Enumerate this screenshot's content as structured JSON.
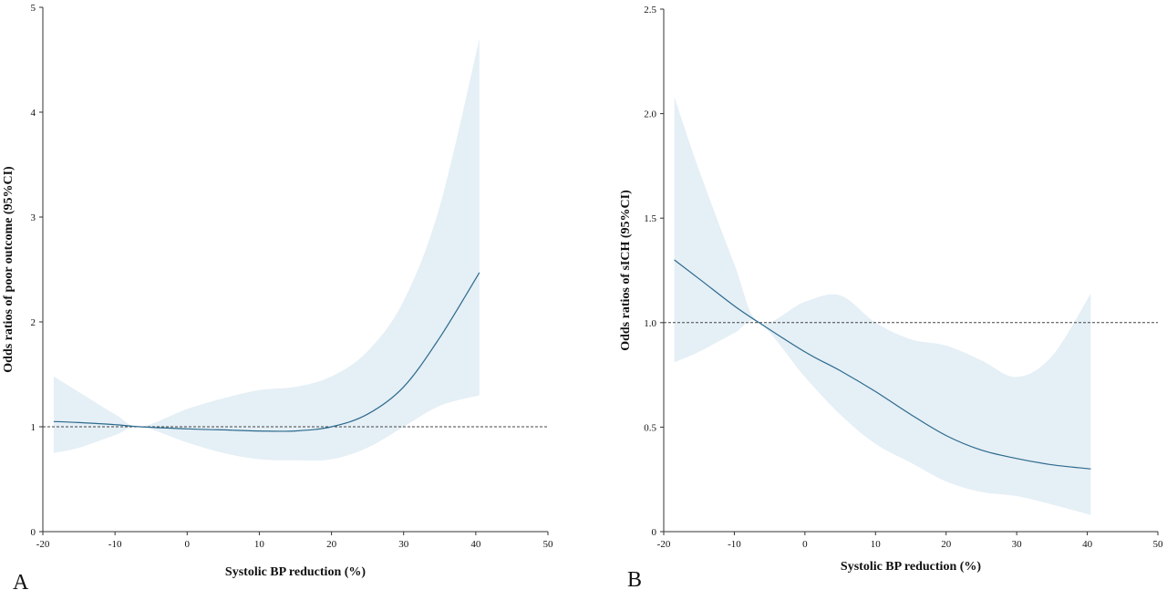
{
  "colors": {
    "band": "#dce9f3",
    "line": "#2b6a8c",
    "reference": "#444444"
  },
  "chart_data": [
    {
      "type": "line",
      "panel_label": "A",
      "xlabel": "Systolic BP reduction (%)",
      "ylabel": "Odds ratios of poor outcome (95%CI)",
      "xlim": [
        -20,
        50
      ],
      "ylim": [
        0,
        5
      ],
      "x_ticks": [
        -20,
        -10,
        0,
        10,
        20,
        30,
        40,
        50
      ],
      "x_tick_labels": [
        "-20",
        "-10",
        "0",
        "10",
        "20",
        "30",
        "40",
        "50"
      ],
      "y_ticks": [
        0,
        1,
        2,
        3,
        4,
        5
      ],
      "y_tick_labels": [
        "0",
        "1",
        "2",
        "3",
        "4",
        "5"
      ],
      "reference_line": {
        "y": 1,
        "style": "dashed",
        "x_end": 50
      },
      "x": [
        -18.5,
        -15,
        -10,
        -6.5,
        0,
        5,
        10,
        15,
        20,
        25,
        30,
        35,
        40.5
      ],
      "estimate": [
        1.05,
        1.04,
        1.02,
        1.0,
        0.98,
        0.97,
        0.96,
        0.96,
        1.0,
        1.12,
        1.38,
        1.85,
        2.47
      ],
      "ci_lower": [
        0.75,
        0.8,
        0.92,
        1.0,
        0.85,
        0.75,
        0.69,
        0.68,
        0.69,
        0.8,
        1.0,
        1.2,
        1.3
      ],
      "ci_upper": [
        1.48,
        1.33,
        1.12,
        1.0,
        1.17,
        1.27,
        1.35,
        1.38,
        1.48,
        1.72,
        2.2,
        3.1,
        4.7
      ],
      "grid": false,
      "legend": "none"
    },
    {
      "type": "line",
      "panel_label": "B",
      "xlabel": "Systolic BP reduction (%)",
      "ylabel": "Odds ratios of sICH (95%CI)",
      "xlim": [
        -20,
        50
      ],
      "ylim": [
        0,
        2.5
      ],
      "x_ticks": [
        -20,
        -10,
        0,
        10,
        20,
        30,
        40,
        50
      ],
      "x_tick_labels": [
        "-20",
        "-10",
        "0",
        "10",
        "20",
        "30",
        "40",
        "50"
      ],
      "y_ticks": [
        0,
        0.5,
        1.0,
        1.5,
        2.0,
        2.5
      ],
      "y_tick_labels": [
        "0",
        "0.5",
        "1.0",
        "1.5",
        "2.0",
        "2.5"
      ],
      "reference_line": {
        "y": 1,
        "style": "dotted",
        "x_end": 50
      },
      "x": [
        -18.5,
        -15,
        -10,
        -6.5,
        0,
        5,
        10,
        15,
        20,
        25,
        30,
        35,
        40.5
      ],
      "estimate": [
        1.3,
        1.21,
        1.08,
        1.0,
        0.86,
        0.77,
        0.67,
        0.56,
        0.46,
        0.39,
        0.35,
        0.32,
        0.3
      ],
      "ci_lower": [
        0.81,
        0.86,
        0.95,
        1.0,
        0.74,
        0.56,
        0.42,
        0.33,
        0.24,
        0.19,
        0.17,
        0.13,
        0.08
      ],
      "ci_upper": [
        2.08,
        1.73,
        1.28,
        1.0,
        1.1,
        1.13,
        1.0,
        0.92,
        0.89,
        0.82,
        0.74,
        0.84,
        1.14
      ],
      "grid": false,
      "legend": "none"
    }
  ]
}
